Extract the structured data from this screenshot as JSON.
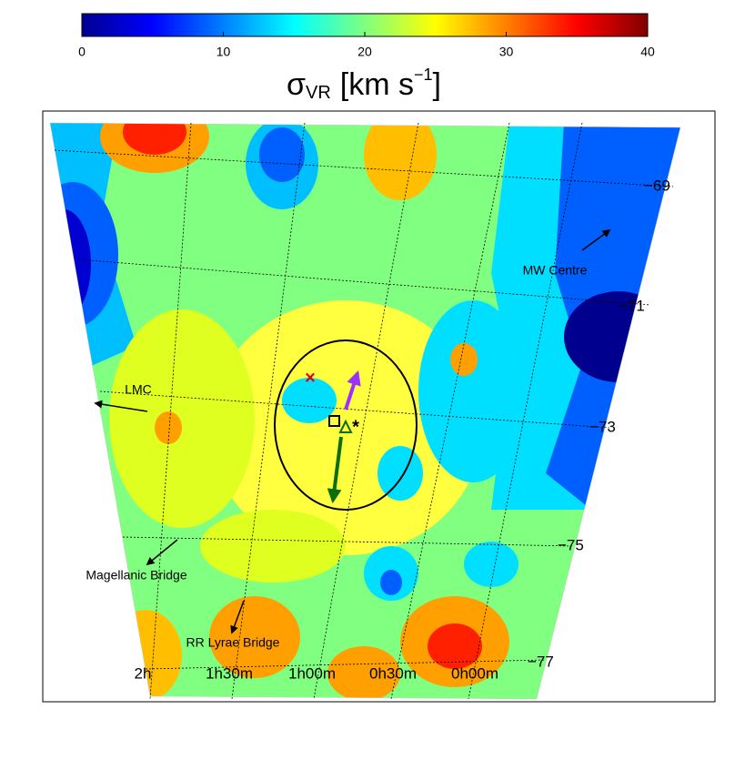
{
  "chart_data": {
    "type": "map",
    "colormap": "jet",
    "colorbar": {
      "lim": [
        0,
        40
      ],
      "ticks": [
        0,
        10,
        20,
        30,
        40
      ],
      "label": {
        "symbol": "σ",
        "subscript": "VR",
        "unit": "[km s",
        "superscript": "−1",
        "close": "]"
      }
    },
    "ra_labels": [
      "2h",
      "1h30m",
      "1h00m",
      "0h30m",
      "0h00m"
    ],
    "dec_ticks": [
      {
        "value": -69,
        "label": "−69"
      },
      {
        "value": -71,
        "label": "−71"
      },
      {
        "value": -73,
        "label": "−73"
      },
      {
        "value": -75,
        "label": "−75"
      },
      {
        "value": -77,
        "label": "−77"
      }
    ],
    "annotations": [
      "LMC",
      "MW Centre",
      "Magellanic Bridge",
      "RR Lyrae Bridge"
    ]
  }
}
